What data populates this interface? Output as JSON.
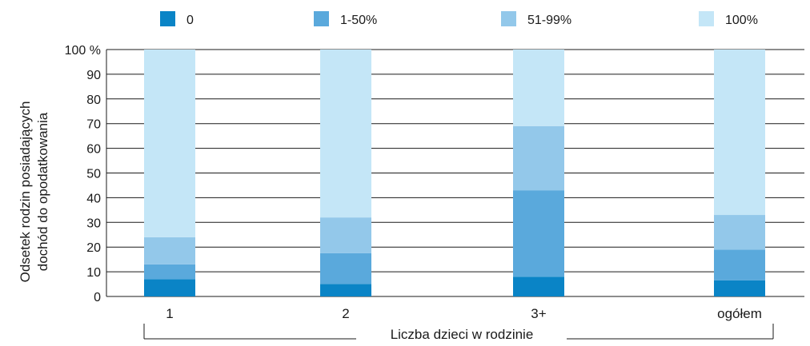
{
  "chart_data": {
    "type": "bar",
    "stacked": true,
    "categories": [
      "1",
      "2",
      "3+",
      "ogółem"
    ],
    "series": [
      {
        "name": "0",
        "values": [
          7,
          5,
          8,
          6.5
        ],
        "color": "#0a84c6"
      },
      {
        "name": "1-50%",
        "values": [
          6,
          12.5,
          35,
          12.5
        ],
        "color": "#5aa9dc"
      },
      {
        "name": "51-99%",
        "values": [
          11,
          14.5,
          26,
          14
        ],
        "color": "#93c8ea"
      },
      {
        "name": "100%",
        "values": [
          76,
          68,
          31,
          67
        ],
        "color": "#c4e6f7"
      }
    ],
    "ylim": [
      0,
      100
    ],
    "yticks": [
      "0",
      "10",
      "20",
      "30",
      "40",
      "50",
      "60",
      "70",
      "80",
      "90",
      "100 %"
    ],
    "ylabel_lines": [
      "Odsetek rodzin posiadających",
      "dochód do opodatkowania"
    ],
    "xlabel": "Liczba dzieci w rodzinie",
    "grid": true,
    "legend_position": "top"
  }
}
